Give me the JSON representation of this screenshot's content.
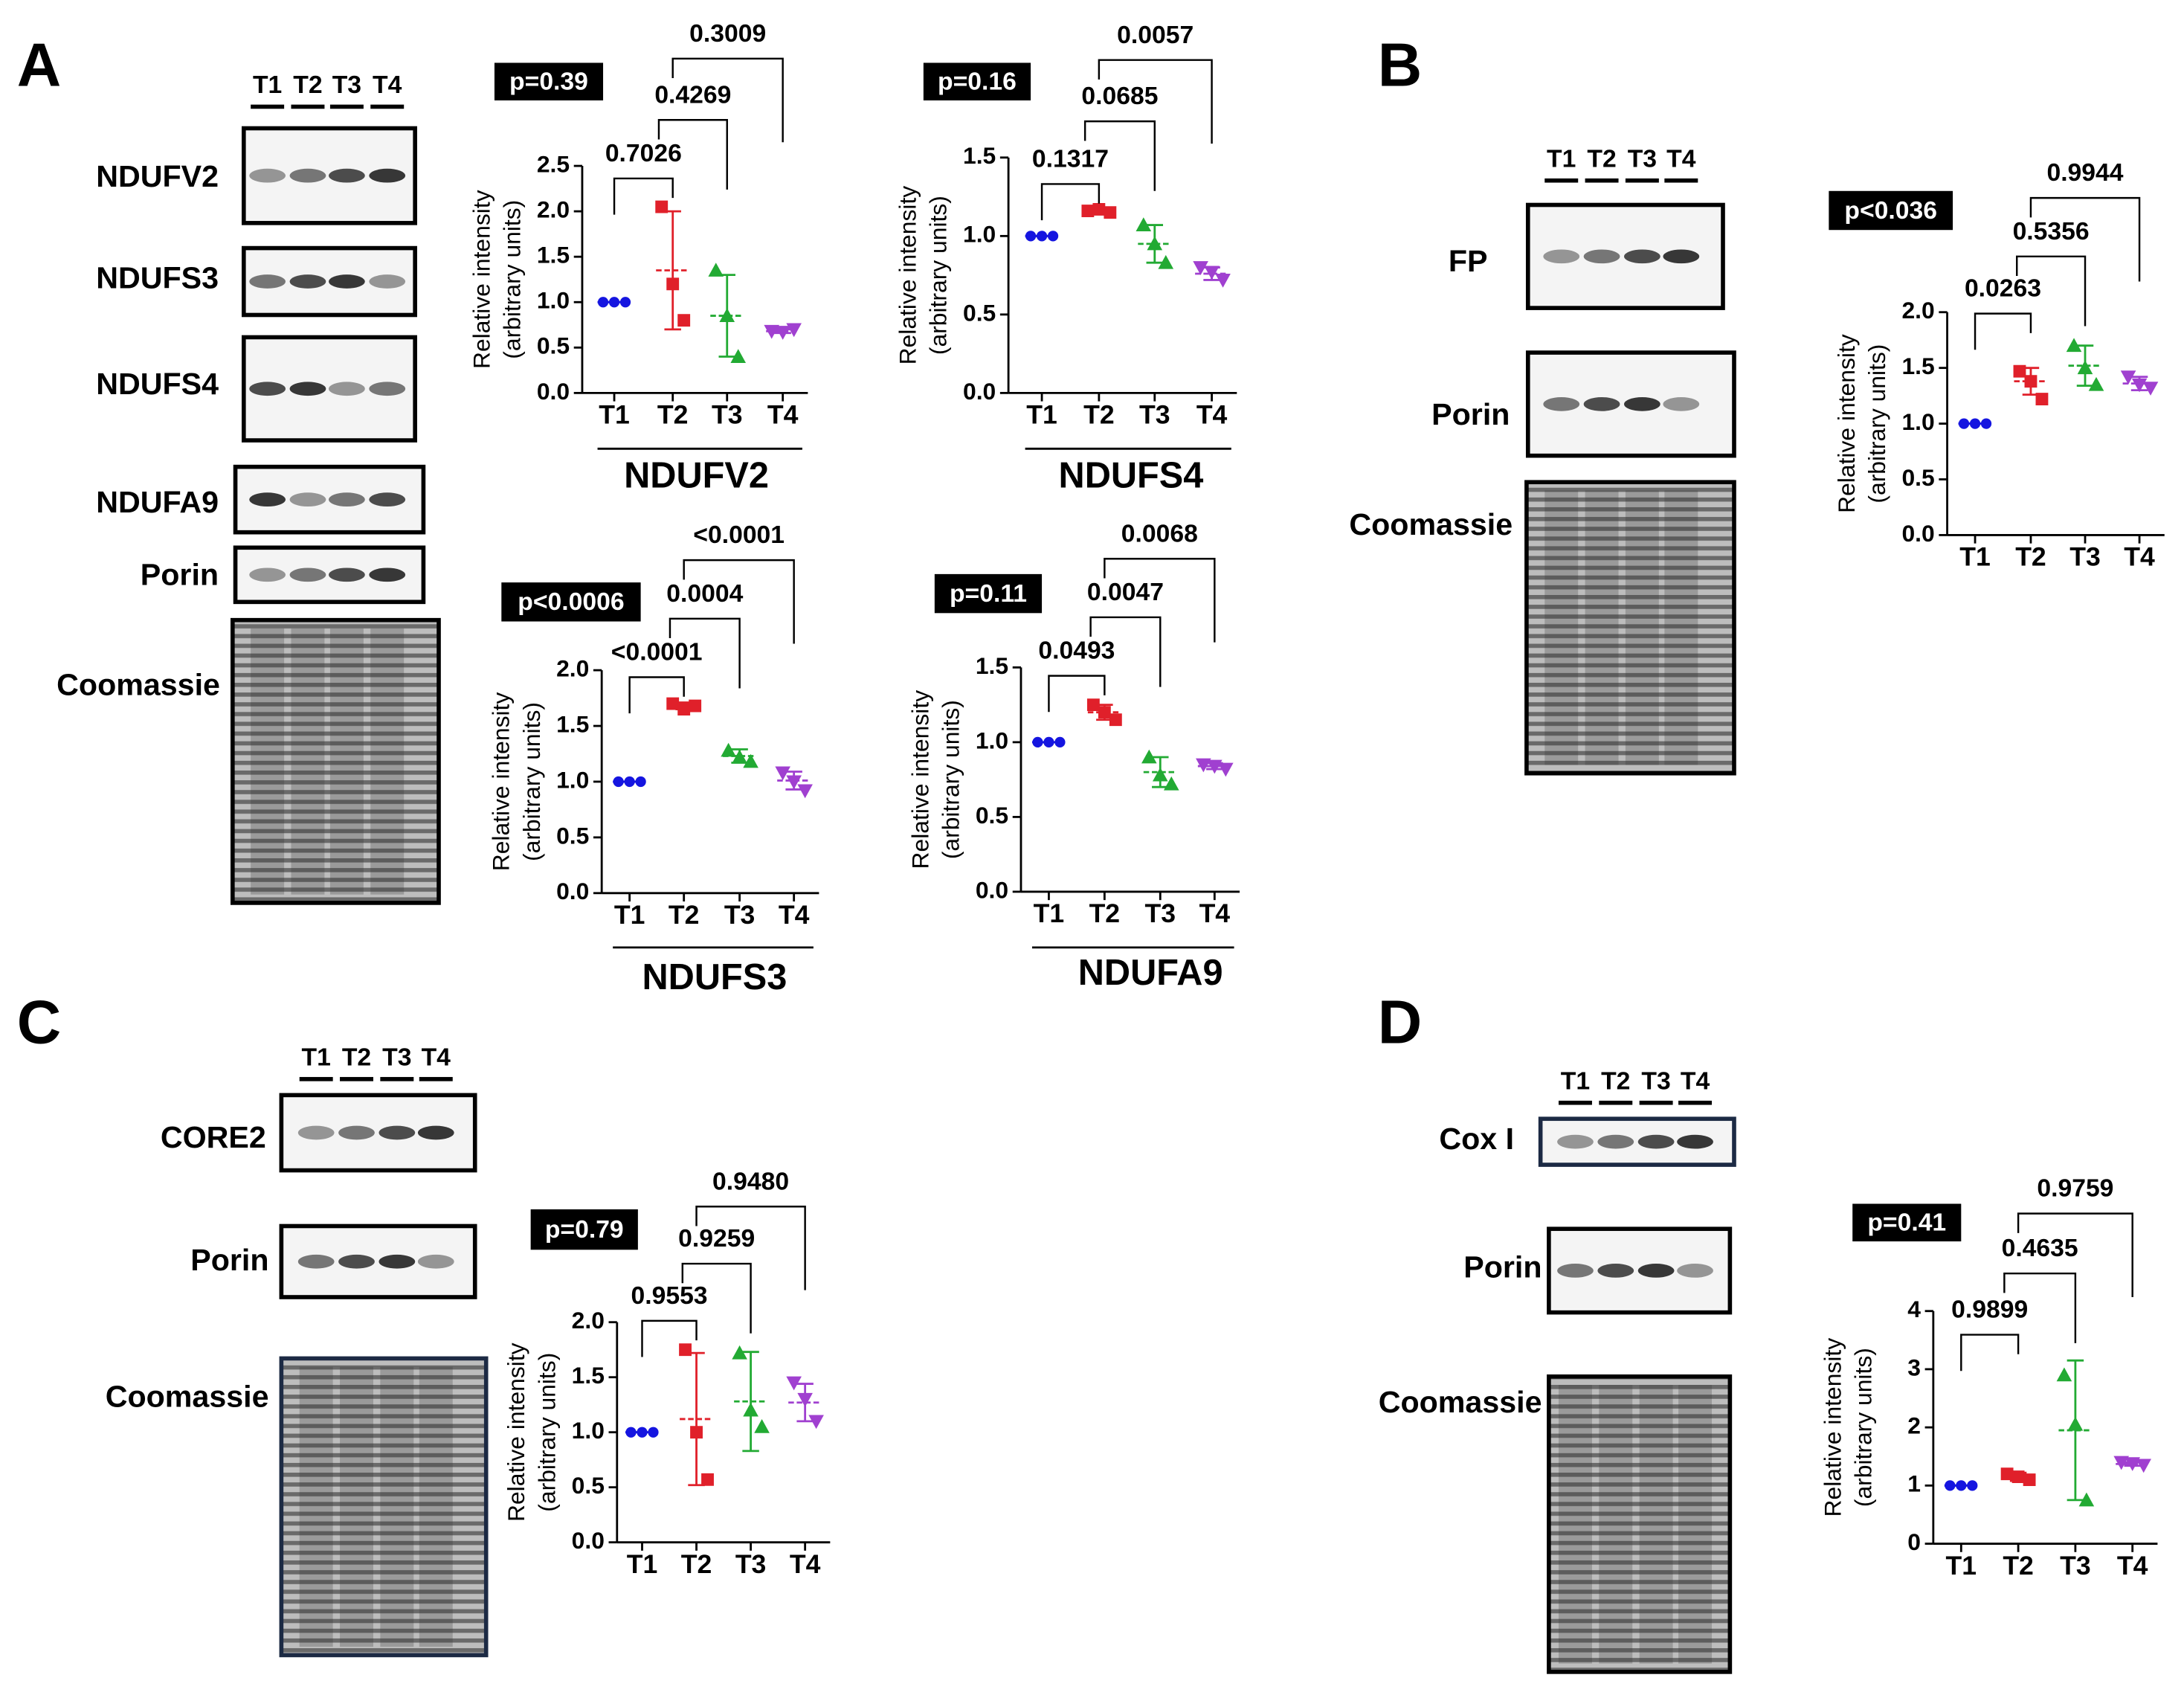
{
  "panels": [
    "A",
    "B",
    "C",
    "D"
  ],
  "blots": [
    {
      "lanes": [
        "T1",
        "T2",
        "T3",
        "T4"
      ],
      "rows": [
        "NDUFV2",
        "NDUFS3",
        "NDUFS4",
        "NDUFA9",
        "Porin",
        "Coomassie"
      ]
    },
    {
      "lanes": [
        "T1",
        "T2",
        "T3",
        "T4"
      ],
      "rows": [
        "FP",
        "Porin",
        "Coomassie"
      ]
    },
    {
      "lanes": [
        "T1",
        "T2",
        "T3",
        "T4"
      ],
      "rows": [
        "CORE2",
        "Porin",
        "Coomassie"
      ]
    },
    {
      "lanes": [
        "T1",
        "T2",
        "T3",
        "T4"
      ],
      "rows": [
        "Cox I",
        "Porin",
        "Coomassie"
      ]
    }
  ],
  "chart_data": [
    {
      "type": "dot",
      "title": "NDUFV2",
      "overall_p": "p=0.39",
      "ylabel": [
        "Relative intensity",
        "(arbitrary units)"
      ],
      "categories": [
        "T1",
        "T2",
        "T3",
        "T4"
      ],
      "colors": [
        "#1515e0",
        "#e0202a",
        "#22aa33",
        "#a040d0"
      ],
      "points": [
        [
          1,
          1,
          1
        ],
        [
          2.05,
          1.2,
          0.8
        ],
        [
          1.35,
          0.85,
          0.4
        ],
        [
          0.68,
          0.67,
          0.7
        ]
      ],
      "means": [
        1,
        1.35,
        0.85,
        0.68
      ],
      "errors": [
        0,
        0.65,
        0.45,
        0.02
      ],
      "ylim": [
        0,
        2.5
      ],
      "yticks": [
        {
          "value": 0,
          "label": "0.0"
        },
        0.5,
        {
          "value": 1,
          "label": "1.0"
        },
        1.5,
        {
          "value": 2,
          "label": "2.0"
        },
        2.5
      ],
      "comparisons": [
        "0.7026",
        "0.4269",
        "0.3009"
      ]
    },
    {
      "type": "dot",
      "title": "NDUFS4",
      "overall_p": "p=0.16",
      "ylabel": [
        "Relative intensity",
        "(arbitrary units)"
      ],
      "categories": [
        "T1",
        "T2",
        "T3",
        "T4"
      ],
      "colors": [
        "#1515e0",
        "#e0202a",
        "#22aa33",
        "#a040d0"
      ],
      "points": [
        [
          1,
          1,
          1
        ],
        [
          1.16,
          1.17,
          1.15
        ],
        [
          1.07,
          0.95,
          0.83
        ],
        [
          0.8,
          0.77,
          0.72
        ]
      ],
      "means": [
        1,
        1.16,
        0.95,
        0.76
      ],
      "errors": [
        0,
        0.02,
        0.12,
        0.04
      ],
      "ylim": [
        0,
        1.5
      ],
      "yticks": [
        {
          "value": 0,
          "label": "0.0"
        },
        0.5,
        {
          "value": 1,
          "label": "1.0"
        },
        1.5
      ],
      "comparisons": [
        "0.1317",
        "0.0685",
        "0.0057"
      ]
    },
    {
      "type": "dot",
      "title": "NDUFS3",
      "overall_p": "p<0.0006",
      "ylabel": [
        "Relative intensity",
        "(arbitrary units)"
      ],
      "categories": [
        "T1",
        "T2",
        "T3",
        "T4"
      ],
      "colors": [
        "#1515e0",
        "#e0202a",
        "#22aa33",
        "#a040d0"
      ],
      "points": [
        [
          1,
          1,
          1
        ],
        [
          1.7,
          1.65,
          1.68
        ],
        [
          1.28,
          1.22,
          1.18
        ],
        [
          1.08,
          1.0,
          0.92
        ]
      ],
      "means": [
        1,
        1.68,
        1.23,
        1.01
      ],
      "errors": [
        0,
        0.03,
        0.06,
        0.08
      ],
      "ylim": [
        0,
        2
      ],
      "yticks": [
        {
          "value": 0,
          "label": "0.0"
        },
        0.5,
        {
          "value": 1,
          "label": "1.0"
        },
        1.5,
        {
          "value": 2,
          "label": "2.0"
        }
      ],
      "comparisons": [
        "<0.0001",
        "0.0004",
        "<0.0001"
      ]
    },
    {
      "type": "dot",
      "title": "NDUFA9",
      "overall_p": "p=0.11",
      "ylabel": [
        "Relative intensity",
        "(arbitrary units)"
      ],
      "categories": [
        "T1",
        "T2",
        "T3",
        "T4"
      ],
      "colors": [
        "#1515e0",
        "#e0202a",
        "#22aa33",
        "#a040d0"
      ],
      "points": [
        [
          1,
          1,
          1
        ],
        [
          1.25,
          1.2,
          1.15
        ],
        [
          0.9,
          0.78,
          0.72
        ],
        [
          0.85,
          0.84,
          0.82
        ]
      ],
      "means": [
        1,
        1.2,
        0.8,
        0.84
      ],
      "errors": [
        0,
        0.05,
        0.1,
        0.02
      ],
      "ylim": [
        0,
        1.5
      ],
      "yticks": [
        {
          "value": 0,
          "label": "0.0"
        },
        0.5,
        {
          "value": 1,
          "label": "1.0"
        },
        1.5
      ],
      "comparisons": [
        "0.0493",
        "0.0047",
        "0.0068"
      ]
    },
    {
      "type": "dot",
      "overall_p": "p<0.036",
      "ylabel": [
        "Relative intensity",
        "(arbitrary units)"
      ],
      "categories": [
        "T1",
        "T2",
        "T3",
        "T4"
      ],
      "colors": [
        "#1515e0",
        "#e0202a",
        "#22aa33",
        "#a040d0"
      ],
      "points": [
        [
          1,
          1,
          1
        ],
        [
          1.47,
          1.38,
          1.22
        ],
        [
          1.7,
          1.5,
          1.35
        ],
        [
          1.42,
          1.35,
          1.32
        ]
      ],
      "means": [
        1,
        1.38,
        1.52,
        1.36
      ],
      "errors": [
        0,
        0.12,
        0.18,
        0.06
      ],
      "ylim": [
        0,
        2
      ],
      "yticks": [
        {
          "value": 0,
          "label": "0.0"
        },
        0.5,
        {
          "value": 1,
          "label": "1.0"
        },
        1.5,
        {
          "value": 2,
          "label": "2.0"
        }
      ],
      "comparisons": [
        "0.0263",
        "0.5356",
        "0.9944"
      ]
    },
    {
      "type": "dot",
      "overall_p": "p=0.79",
      "ylabel": [
        "Relative intensity",
        "(arbitrary units)"
      ],
      "categories": [
        "T1",
        "T2",
        "T3",
        "T4"
      ],
      "colors": [
        "#1515e0",
        "#e0202a",
        "#22aa33",
        "#a040d0"
      ],
      "points": [
        [
          1,
          1,
          1
        ],
        [
          1.75,
          1.0,
          0.57
        ],
        [
          1.72,
          1.2,
          1.05
        ],
        [
          1.45,
          1.3,
          1.1
        ]
      ],
      "means": [
        1,
        1.12,
        1.28,
        1.27
      ],
      "errors": [
        0,
        0.6,
        0.45,
        0.17
      ],
      "ylim": [
        0,
        2
      ],
      "yticks": [
        {
          "value": 0,
          "label": "0.0"
        },
        0.5,
        {
          "value": 1,
          "label": "1.0"
        },
        1.5,
        {
          "value": 2,
          "label": "2.0"
        }
      ],
      "comparisons": [
        "0.9553",
        "0.9259",
        "0.9480"
      ]
    },
    {
      "type": "dot",
      "overall_p": "p=0.41",
      "ylabel": [
        "Relative intensity",
        "(arbitrary units)"
      ],
      "categories": [
        "T1",
        "T2",
        "T3",
        "T4"
      ],
      "colors": [
        "#1515e0",
        "#e0202a",
        "#22aa33",
        "#a040d0"
      ],
      "points": [
        [
          1,
          1,
          1
        ],
        [
          1.2,
          1.15,
          1.1
        ],
        [
          2.9,
          2.05,
          0.75
        ],
        [
          1.4,
          1.38,
          1.35
        ]
      ],
      "means": [
        1,
        1.15,
        1.95,
        1.37
      ],
      "errors": [
        0,
        0.07,
        1.2,
        0.03
      ],
      "ylim": [
        0,
        4
      ],
      "yticks": [
        0,
        1,
        2,
        3,
        4
      ],
      "comparisons": [
        "0.9899",
        "0.4635",
        "0.9759"
      ]
    }
  ]
}
